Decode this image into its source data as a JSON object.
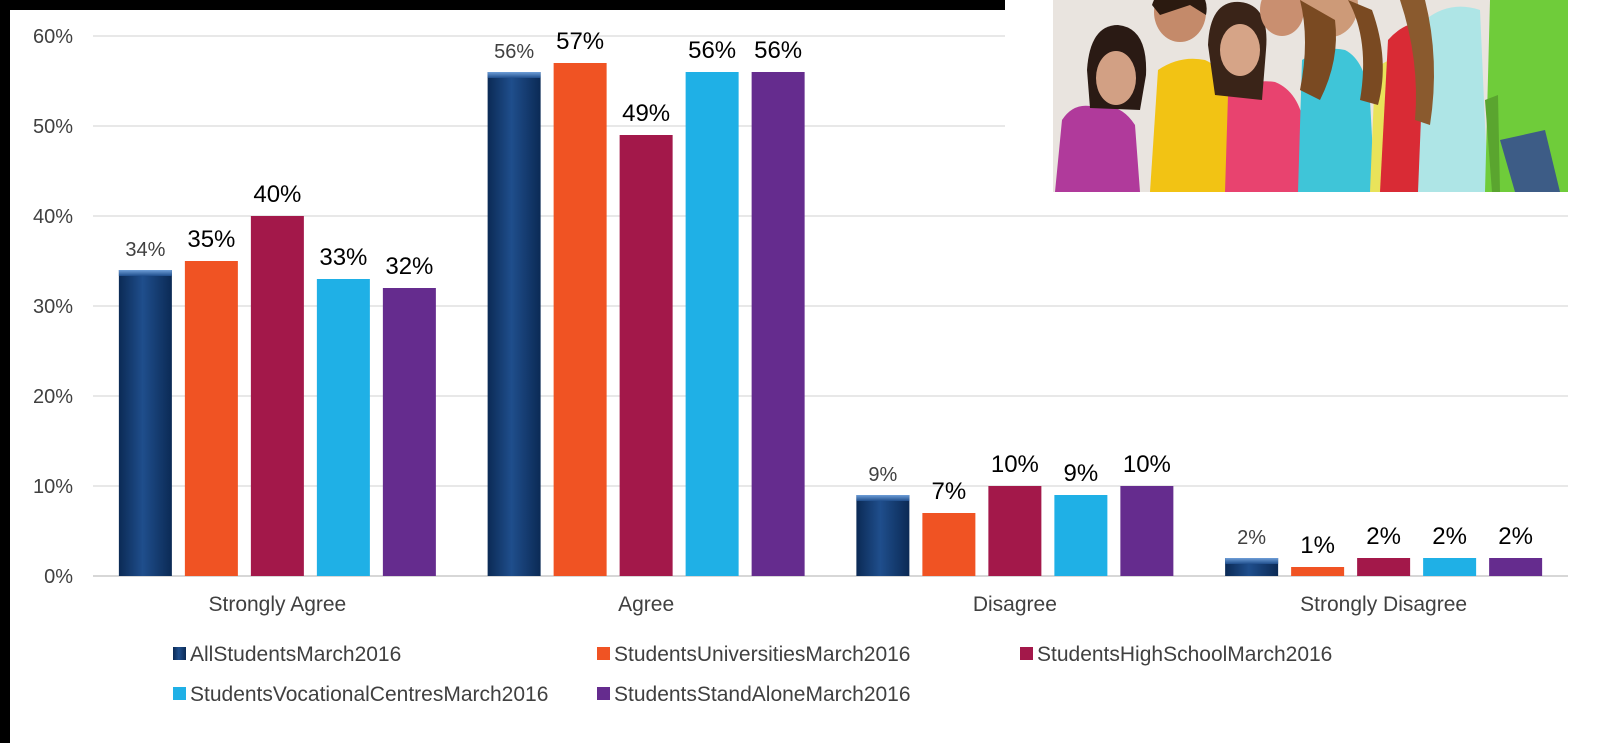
{
  "chart_data": {
    "type": "bar",
    "categories": [
      "Strongly Agree",
      "Agree",
      "Disagree",
      "Strongly Disagree"
    ],
    "series": [
      {
        "name": "AllStudentsMarch2016",
        "values": [
          34,
          56,
          9,
          2
        ],
        "value_labels": [
          "34%",
          "56%",
          "9%",
          "2%"
        ],
        "color": "#1F4E8C"
      },
      {
        "name": "StudentsUniversitiesMarch2016",
        "values": [
          35,
          57,
          7,
          1
        ],
        "value_labels": [
          "35%",
          "57%",
          "7%",
          "1%"
        ],
        "color": "#F05323"
      },
      {
        "name": "StudentsHighSchoolMarch2016",
        "values": [
          40,
          49,
          10,
          2
        ],
        "value_labels": [
          "40%",
          "49%",
          "10%",
          "2%"
        ],
        "color": "#A3184A"
      },
      {
        "name": "StudentsVocationalCentresMarch2016",
        "values": [
          33,
          56,
          9,
          2
        ],
        "value_labels": [
          "33%",
          "56%",
          "9%",
          "2%"
        ],
        "color": "#1FB0E6"
      },
      {
        "name": "StudentsStandAloneMarch2016",
        "values": [
          32,
          56,
          10,
          2
        ],
        "value_labels": [
          "32%",
          "56%",
          "10%",
          "2%"
        ],
        "color": "#652C8E"
      }
    ],
    "y_ticks": [
      "0%",
      "10%",
      "20%",
      "30%",
      "40%",
      "50%",
      "60%"
    ],
    "ylim": [
      0,
      60
    ],
    "grid": true,
    "legend_position": "bottom"
  }
}
